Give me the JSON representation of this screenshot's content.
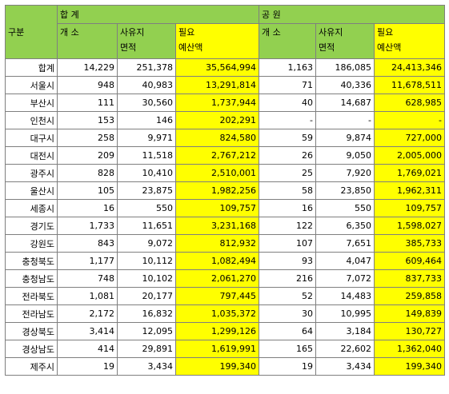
{
  "header": {
    "gubun": "구분",
    "total_group": "합 계",
    "park_group": "공 원",
    "count": "개 소",
    "area_line1": "사유지",
    "area_line2": "면적",
    "budget_line1": "필요",
    "budget_line2": "예산액"
  },
  "rows": [
    {
      "name": "합계",
      "t_count": "14,229",
      "t_area": "251,378",
      "t_budget": "35,564,994",
      "p_count": "1,163",
      "p_area": "186,085",
      "p_budget": "24,413,346"
    },
    {
      "name": "서울시",
      "t_count": "948",
      "t_area": "40,983",
      "t_budget": "13,291,814",
      "p_count": "71",
      "p_area": "40,336",
      "p_budget": "11,678,511"
    },
    {
      "name": "부산시",
      "t_count": "111",
      "t_area": "30,560",
      "t_budget": "1,737,944",
      "p_count": "40",
      "p_area": "14,687",
      "p_budget": "628,985"
    },
    {
      "name": "인천시",
      "t_count": "153",
      "t_area": "146",
      "t_budget": "202,291",
      "p_count": "-",
      "p_area": "-",
      "p_budget": "-"
    },
    {
      "name": "대구시",
      "t_count": "258",
      "t_area": "9,971",
      "t_budget": "824,580",
      "p_count": "59",
      "p_area": "9,874",
      "p_budget": "727,000"
    },
    {
      "name": "대전시",
      "t_count": "209",
      "t_area": "11,518",
      "t_budget": "2,767,212",
      "p_count": "26",
      "p_area": "9,050",
      "p_budget": "2,005,000"
    },
    {
      "name": "광주시",
      "t_count": "828",
      "t_area": "10,410",
      "t_budget": "2,510,001",
      "p_count": "25",
      "p_area": "7,920",
      "p_budget": "1,769,021"
    },
    {
      "name": "울산시",
      "t_count": "105",
      "t_area": "23,875",
      "t_budget": "1,982,256",
      "p_count": "58",
      "p_area": "23,850",
      "p_budget": "1,962,311"
    },
    {
      "name": "세종시",
      "t_count": "16",
      "t_area": "550",
      "t_budget": "109,757",
      "p_count": "16",
      "p_area": "550",
      "p_budget": "109,757"
    },
    {
      "name": "경기도",
      "t_count": "1,733",
      "t_area": "11,651",
      "t_budget": "3,231,168",
      "p_count": "122",
      "p_area": "6,350",
      "p_budget": "1,598,027"
    },
    {
      "name": "강원도",
      "t_count": "843",
      "t_area": "9,072",
      "t_budget": "812,932",
      "p_count": "107",
      "p_area": "7,651",
      "p_budget": "385,733"
    },
    {
      "name": "충청북도",
      "t_count": "1,177",
      "t_area": "10,112",
      "t_budget": "1,082,494",
      "p_count": "93",
      "p_area": "4,047",
      "p_budget": "609,464"
    },
    {
      "name": "충청남도",
      "t_count": "748",
      "t_area": "10,102",
      "t_budget": "2,061,270",
      "p_count": "216",
      "p_area": "7,072",
      "p_budget": "837,733"
    },
    {
      "name": "전라북도",
      "t_count": "1,081",
      "t_area": "20,177",
      "t_budget": "797,445",
      "p_count": "52",
      "p_area": "14,483",
      "p_budget": "259,858"
    },
    {
      "name": "전라남도",
      "t_count": "2,172",
      "t_area": "16,832",
      "t_budget": "1,035,372",
      "p_count": "30",
      "p_area": "10,995",
      "p_budget": "149,839"
    },
    {
      "name": "경상북도",
      "t_count": "3,414",
      "t_area": "12,095",
      "t_budget": "1,299,126",
      "p_count": "64",
      "p_area": "3,184",
      "p_budget": "130,727"
    },
    {
      "name": "경상남도",
      "t_count": "414",
      "t_area": "29,891",
      "t_budget": "1,619,991",
      "p_count": "165",
      "p_area": "22,602",
      "p_budget": "1,362,040"
    },
    {
      "name": "제주시",
      "t_count": "19",
      "t_area": "3,434",
      "t_budget": "199,340",
      "p_count": "19",
      "p_area": "3,434",
      "p_budget": "199,340"
    }
  ],
  "colors": {
    "header_green": "#92d050",
    "budget_yellow": "#ffff00",
    "grid_border": "#7f7f7f"
  }
}
